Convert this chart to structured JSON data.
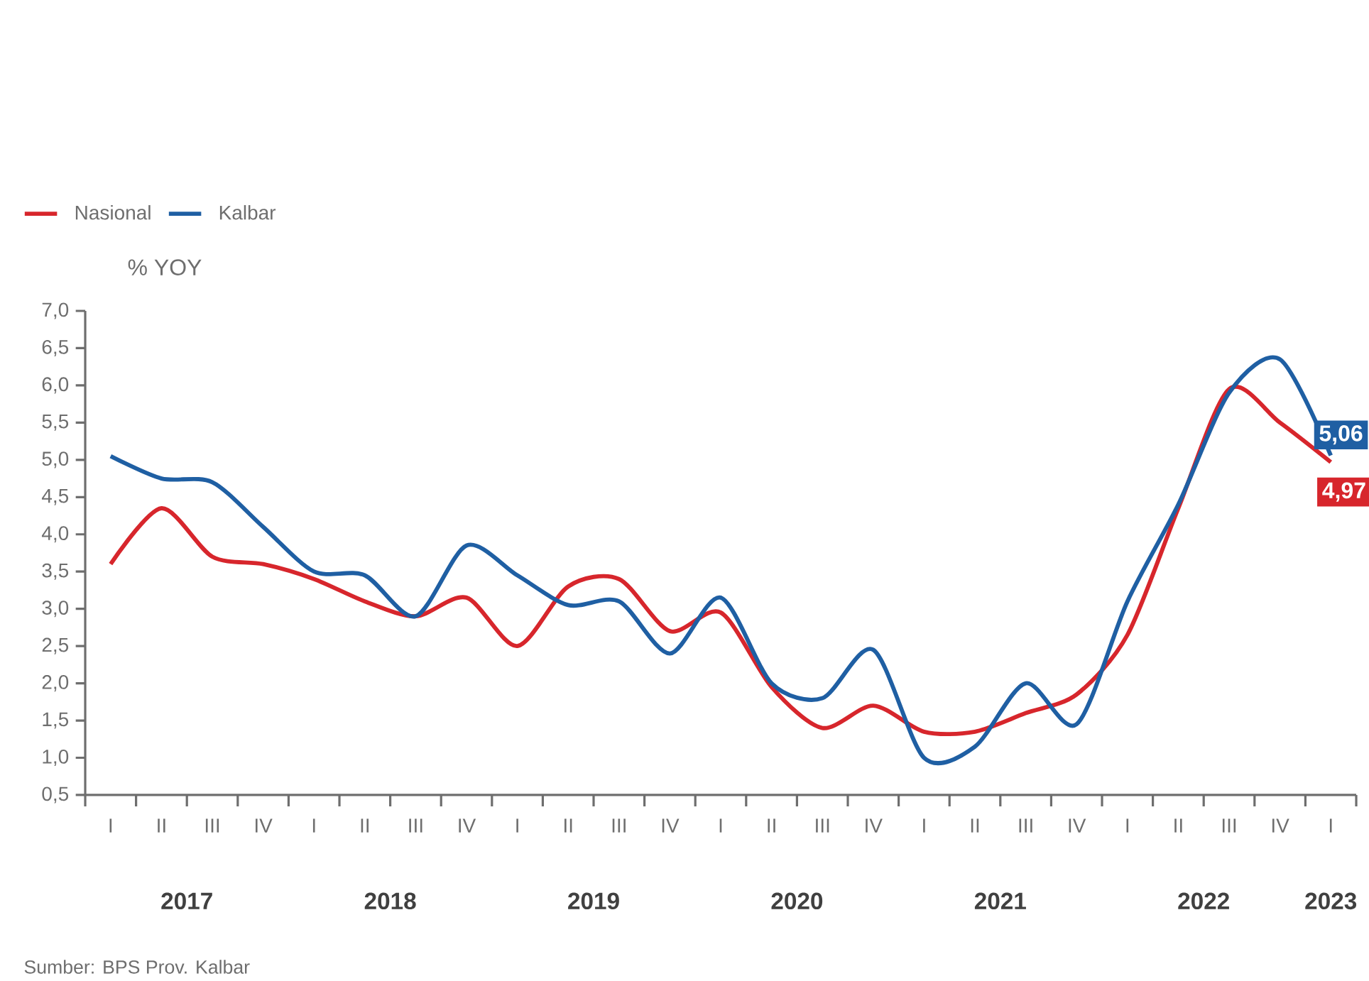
{
  "chart_data": {
    "type": "line",
    "ylabel": "% YOY",
    "categories": [
      "I",
      "II",
      "III",
      "IV",
      "I",
      "II",
      "III",
      "IV",
      "I",
      "II",
      "III",
      "IV",
      "I",
      "II",
      "III",
      "IV",
      "I",
      "II",
      "III",
      "IV",
      "I",
      "II",
      "III",
      "IV",
      "I"
    ],
    "series": [
      {
        "name": "Nasional",
        "color": "#d7262c",
        "values": [
          3.6,
          4.35,
          3.7,
          3.6,
          3.4,
          3.1,
          2.9,
          3.15,
          2.5,
          3.3,
          3.4,
          2.7,
          2.95,
          1.95,
          1.4,
          1.7,
          1.35,
          1.35,
          1.6,
          1.85,
          2.65,
          4.35,
          5.95,
          5.5,
          4.97
        ],
        "value_labels": [
          null,
          null,
          null,
          null,
          null,
          null,
          null,
          null,
          null,
          null,
          null,
          null,
          null,
          null,
          null,
          null,
          null,
          null,
          null,
          null,
          null,
          null,
          null,
          null,
          "4,97"
        ]
      },
      {
        "name": "Kalbar",
        "color": "#1f5fa3",
        "values": [
          5.05,
          4.75,
          4.7,
          4.1,
          3.5,
          3.45,
          2.9,
          3.85,
          3.45,
          3.05,
          3.1,
          2.4,
          3.15,
          2.0,
          1.8,
          2.45,
          1.0,
          1.15,
          2.0,
          1.45,
          3.1,
          4.4,
          5.9,
          6.35,
          5.06
        ],
        "value_labels": [
          null,
          null,
          null,
          null,
          null,
          null,
          null,
          null,
          null,
          null,
          null,
          null,
          null,
          null,
          null,
          null,
          null,
          null,
          null,
          null,
          null,
          null,
          null,
          null,
          "5,06"
        ]
      }
    ],
    "ylim": [
      0.5,
      7.0
    ],
    "yticks": [
      {
        "value": 0.5,
        "label": "0,5"
      },
      {
        "value": 1.0,
        "label": "1,0"
      },
      {
        "value": 1.5,
        "label": "1,5"
      },
      {
        "value": 2.0,
        "label": "2,0"
      },
      {
        "value": 2.5,
        "label": "2,5"
      },
      {
        "value": 3.0,
        "label": "3,0"
      },
      {
        "value": 3.5,
        "label": "3,5"
      },
      {
        "value": 4.0,
        "label": "4,0"
      },
      {
        "value": 4.5,
        "label": "4,5"
      },
      {
        "value": 5.0,
        "label": "5,0"
      },
      {
        "value": 5.5,
        "label": "5,5"
      },
      {
        "value": 6.0,
        "label": "6,0"
      },
      {
        "value": 6.5,
        "label": "6,5"
      },
      {
        "value": 7.0,
        "label": "7,0"
      }
    ],
    "legend": "top left",
    "grid": false,
    "marker": "none",
    "line_style": "solid",
    "annotations": [
      "2017",
      "2018",
      "2019",
      "2020",
      "2021",
      "2022",
      "2023",
      "Sumber: BPS Prov. Kalbar"
    ]
  }
}
